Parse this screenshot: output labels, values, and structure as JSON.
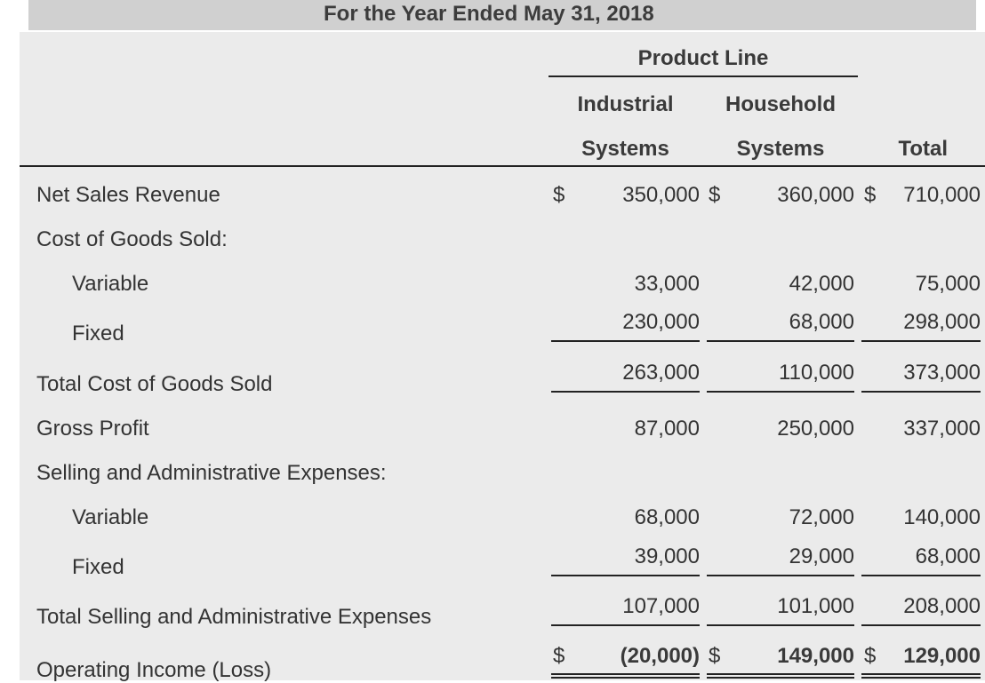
{
  "header": {
    "period": "For the Year Ended May 31, 2018",
    "product_line": "Product Line",
    "columns": [
      {
        "line1": "Industrial",
        "line2": "Systems"
      },
      {
        "line1": "Household",
        "line2": "Systems"
      },
      {
        "line1": "",
        "line2": "Total"
      }
    ],
    "currency": "$"
  },
  "rows": {
    "net_sales": {
      "label": "Net Sales Revenue",
      "values": [
        "350,000",
        "360,000",
        "710,000"
      ]
    },
    "cogs_heading": {
      "label": "Cost of Goods Sold:"
    },
    "cogs_variable": {
      "label": "Variable",
      "values": [
        "33,000",
        "42,000",
        "75,000"
      ]
    },
    "cogs_fixed": {
      "label": "Fixed",
      "values": [
        "230,000",
        "68,000",
        "298,000"
      ]
    },
    "total_cogs": {
      "label": "Total Cost of Goods Sold",
      "values": [
        "263,000",
        "110,000",
        "373,000"
      ]
    },
    "gross_profit": {
      "label": "Gross Profit",
      "values": [
        "87,000",
        "250,000",
        "337,000"
      ]
    },
    "sga_heading": {
      "label": "Selling and Administrative Expenses:"
    },
    "sga_variable": {
      "label": "Variable",
      "values": [
        "68,000",
        "72,000",
        "140,000"
      ]
    },
    "sga_fixed": {
      "label": "Fixed",
      "values": [
        "39,000",
        "29,000",
        "68,000"
      ]
    },
    "total_sga": {
      "label": "Total Selling and Administrative Expenses",
      "values": [
        "107,000",
        "101,000",
        "208,000"
      ]
    },
    "operating_income": {
      "label": "Operating Income (Loss)",
      "values": [
        "(20,000)",
        "149,000",
        "129,000"
      ]
    }
  }
}
